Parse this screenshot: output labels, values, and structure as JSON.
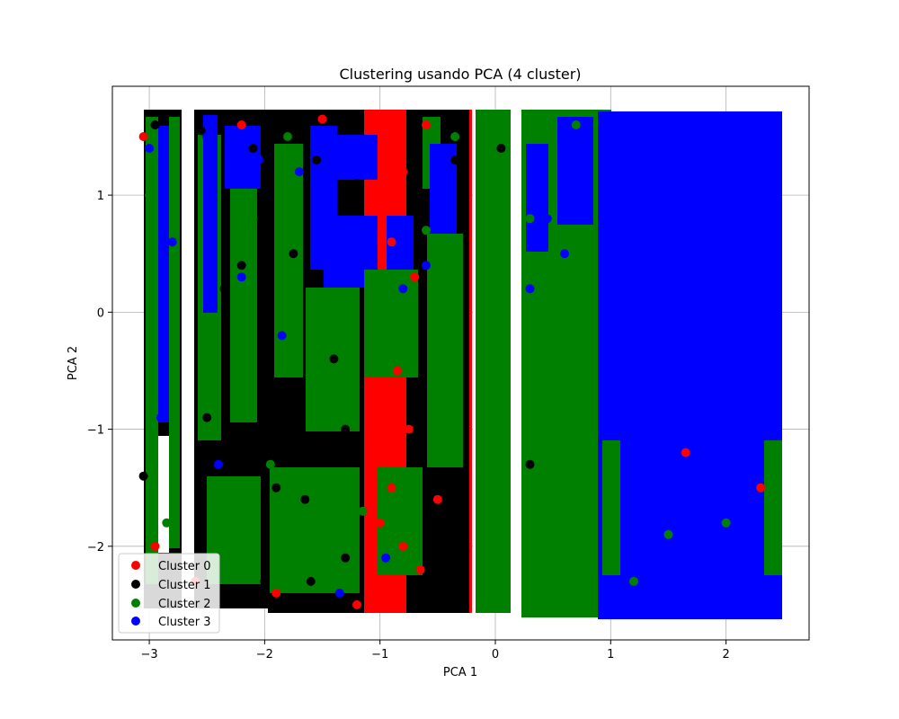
{
  "chart_data": {
    "type": "scatter",
    "title": "Clustering usando PCA (4 cluster)",
    "xlabel": "PCA 1",
    "ylabel": "PCA 2",
    "xlim": [
      -3.32,
      2.72
    ],
    "ylim": [
      -2.8,
      1.93
    ],
    "xticks": [
      -3,
      -2,
      -1,
      0,
      1,
      2
    ],
    "yticks": [
      -2,
      -1,
      0,
      1
    ],
    "xtick_labels": [
      "−3",
      "−2",
      "−1",
      "0",
      "1",
      "2"
    ],
    "ytick_labels": [
      "−2",
      "−1",
      "0",
      "1"
    ],
    "grid": true,
    "legend_position": "lower-left",
    "series": [
      {
        "name": "Cluster 0",
        "color": "#ff0000",
        "x": [
          -3.05,
          -2.95,
          -2.6,
          -2.2,
          -1.9,
          -1.5,
          -1.2,
          -1.0,
          -0.95,
          -0.9,
          -0.85,
          -0.8,
          -0.8,
          -0.75,
          -0.7,
          -0.65,
          -0.9,
          -0.85,
          -1.1,
          -0.6,
          -0.5,
          1.65,
          2.3
        ],
        "y": [
          1.5,
          -2.0,
          -2.3,
          1.6,
          -2.4,
          1.65,
          -2.5,
          -1.8,
          -1.2,
          0.6,
          -0.5,
          -2.0,
          1.2,
          -1.0,
          0.3,
          -2.2,
          -1.5,
          0.9,
          -1.1,
          1.6,
          -1.6,
          -1.2,
          -1.5
        ]
      },
      {
        "name": "Cluster 1",
        "color": "#000000",
        "x": [
          -3.05,
          -2.95,
          -2.55,
          -2.45,
          -2.35,
          -2.25,
          -2.1,
          -2.0,
          -1.85,
          -1.75,
          -1.65,
          -1.55,
          -1.4,
          -1.3,
          -1.2,
          -2.5,
          -2.2,
          -1.9,
          -1.6,
          -1.3,
          -0.45,
          -0.35,
          0.05,
          0.3
        ],
        "y": [
          -1.4,
          1.6,
          1.55,
          -2.4,
          0.2,
          -1.2,
          1.4,
          -2.3,
          -0.8,
          0.5,
          -1.6,
          1.3,
          -0.4,
          -2.1,
          1.1,
          -0.9,
          0.4,
          -1.5,
          -2.3,
          -1.0,
          -2.5,
          1.3,
          1.4,
          -1.3
        ]
      },
      {
        "name": "Cluster 2",
        "color": "#008000",
        "x": [
          -3.0,
          -2.85,
          -2.5,
          -2.3,
          -2.1,
          -1.95,
          -1.8,
          -1.6,
          -1.45,
          -1.3,
          -1.15,
          -0.6,
          -0.5,
          -0.35,
          0.0,
          0.05,
          0.3,
          0.4,
          0.5,
          0.6,
          0.7,
          0.8,
          0.85,
          1.2,
          1.5,
          2.0,
          2.4
        ],
        "y": [
          1.0,
          -1.8,
          -0.3,
          -1.9,
          0.8,
          -1.3,
          1.5,
          -0.6,
          -2.2,
          0.1,
          -1.7,
          0.7,
          -0.9,
          1.5,
          1.6,
          -2.4,
          0.8,
          -1.5,
          0.2,
          -2.3,
          1.6,
          -0.7,
          -2.5,
          -2.3,
          -1.9,
          -1.8,
          -1.95
        ]
      },
      {
        "name": "Cluster 3",
        "color": "#0000ff",
        "x": [
          -3.0,
          -2.9,
          -2.8,
          -2.5,
          -2.4,
          -2.2,
          -2.05,
          -1.85,
          -1.7,
          -1.5,
          -1.35,
          -1.2,
          -1.1,
          -0.95,
          -0.8,
          -0.6,
          0.3,
          0.45,
          0.6,
          0.75,
          1.0,
          1.3,
          1.6,
          1.9,
          2.2,
          2.4
        ],
        "y": [
          1.4,
          -0.9,
          0.6,
          1.5,
          -1.3,
          0.3,
          1.3,
          -0.2,
          1.2,
          0.9,
          -2.4,
          0.6,
          1.4,
          -2.1,
          0.2,
          0.4,
          0.2,
          0.8,
          0.5,
          1.1,
          1.5,
          -0.5,
          0.7,
          -1.8,
          -2.5,
          1.3
        ]
      }
    ]
  }
}
